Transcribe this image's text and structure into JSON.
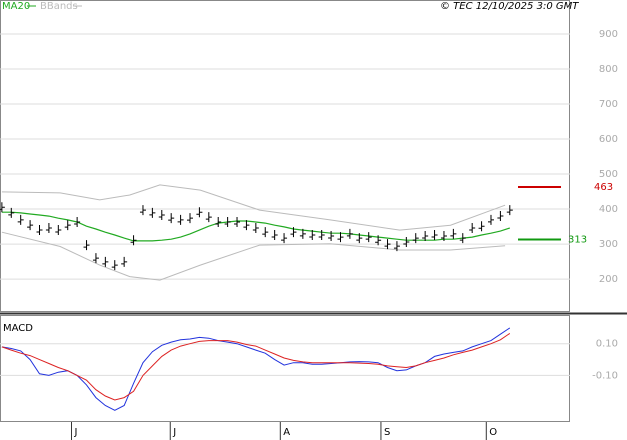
{
  "chart_data": [
    {
      "type": "stock",
      "source": "© TEC 12/10/2025 3:0 GMT",
      "xlim": [
        -0.2,
        60.4
      ],
      "ylim": [
        106,
        997
      ],
      "yticks": [
        200,
        300,
        400,
        500,
        600,
        700,
        800,
        900
      ],
      "grid": true,
      "price": {
        "color": "#000000",
        "values": [
          405,
          389,
          369,
          354,
          340,
          346,
          340,
          354,
          363,
          297,
          260,
          249,
          240,
          249,
          311,
          397,
          389,
          383,
          374,
          369,
          374,
          391,
          377,
          363,
          363,
          363,
          354,
          346,
          334,
          326,
          317,
          334,
          329,
          326,
          326,
          323,
          320,
          329,
          317,
          320,
          311,
          300,
          294,
          306,
          317,
          323,
          326,
          323,
          329,
          317,
          346,
          351,
          369,
          380,
          397
        ]
      },
      "series": [
        {
          "name": "MA20",
          "color": "#22aa22",
          "values": [
            391,
            391,
            389,
            386,
            383,
            380,
            374,
            369,
            363,
            351,
            343,
            334,
            326,
            317,
            309,
            309,
            309,
            311,
            314,
            320,
            329,
            340,
            351,
            360,
            363,
            366,
            366,
            363,
            360,
            354,
            349,
            343,
            340,
            337,
            334,
            331,
            331,
            329,
            326,
            323,
            320,
            317,
            314,
            311,
            311,
            311,
            311,
            314,
            314,
            317,
            320,
            326,
            331,
            337,
            346
          ]
        }
      ],
      "bbands": {
        "name": "BBands",
        "color": "#bbbbbb",
        "x": [
          0,
          6.2,
          10.4,
          13.6,
          16.8,
          21.1,
          27.4,
          34.9,
          42.3,
          47.7,
          53.5
        ],
        "upper": [
          449,
          446,
          426,
          440,
          469,
          454,
          397,
          369,
          340,
          354,
          411
        ],
        "lower": [
          334,
          293,
          240,
          207,
          197,
          240,
          297,
          301,
          283,
          283,
          295
        ]
      },
      "levels": [
        {
          "value": 463,
          "color": "#cc0000"
        },
        {
          "value": 313,
          "color": "#119911"
        }
      ]
    },
    {
      "type": "line",
      "title": "MACD",
      "xlim": [
        -0.2,
        60.4
      ],
      "ylim": [
        -0.394,
        0.275
      ],
      "yticks": [
        {
          "value": 0.1,
          "label": "0.10"
        },
        {
          "value": -0.1,
          "label": "-0.10"
        }
      ],
      "xticks": [
        {
          "value": 7.4,
          "label": "J"
        },
        {
          "value": 17.9,
          "label": "J"
        },
        {
          "value": 29.6,
          "label": "A"
        },
        {
          "value": 40.3,
          "label": "S"
        },
        {
          "value": 51.5,
          "label": "O"
        }
      ],
      "grid": true,
      "series": [
        {
          "color": "#2233dd",
          "values": [
            0.08,
            0.07,
            0.055,
            0.0,
            -0.09,
            -0.1,
            -0.08,
            -0.07,
            -0.1,
            -0.16,
            -0.24,
            -0.29,
            -0.32,
            -0.29,
            -0.15,
            -0.02,
            0.05,
            0.09,
            0.11,
            0.125,
            0.13,
            0.14,
            0.135,
            0.12,
            0.11,
            0.1,
            0.08,
            0.06,
            0.04,
            0.0,
            -0.035,
            -0.02,
            -0.02,
            -0.03,
            -0.03,
            -0.025,
            -0.02,
            -0.015,
            -0.013,
            -0.015,
            -0.02,
            -0.05,
            -0.07,
            -0.065,
            -0.04,
            -0.02,
            0.02,
            0.035,
            0.045,
            0.055,
            0.08,
            0.1,
            0.12,
            0.16,
            0.2
          ]
        },
        {
          "color": "#dd2222",
          "values": [
            0.08,
            0.06,
            0.04,
            0.025,
            0.0,
            -0.025,
            -0.05,
            -0.07,
            -0.1,
            -0.13,
            -0.19,
            -0.23,
            -0.255,
            -0.24,
            -0.2,
            -0.1,
            -0.04,
            0.02,
            0.06,
            0.085,
            0.1,
            0.115,
            0.12,
            0.12,
            0.12,
            0.11,
            0.095,
            0.085,
            0.06,
            0.035,
            0.01,
            -0.005,
            -0.015,
            -0.02,
            -0.02,
            -0.02,
            -0.02,
            -0.02,
            -0.022,
            -0.025,
            -0.03,
            -0.04,
            -0.045,
            -0.05,
            -0.04,
            -0.02,
            -0.005,
            0.01,
            0.03,
            0.045,
            0.06,
            0.08,
            0.1,
            0.125,
            0.165
          ]
        }
      ]
    }
  ]
}
